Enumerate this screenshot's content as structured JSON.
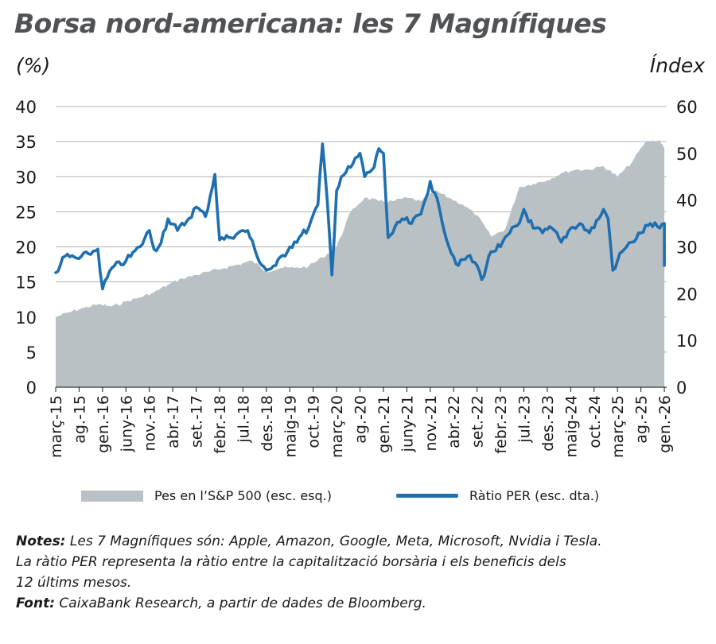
{
  "title": "Borsa nord-americana: les 7 Magnífiques",
  "left_unit": "(%)",
  "right_unit": "Índex",
  "legend": {
    "area_label": "Pes en l’S&P 500 (esc. esq.)",
    "line_label": "Ràtio PER (esc. dta.)"
  },
  "notes": {
    "notes_label": "Notes:",
    "notes_line1": "Les 7 Magnífiques són: Apple, Amazon, Google, Meta, Microsoft, Nvidia i Tesla.",
    "notes_line2": "La ràtio PER representa la ràtio entre la capitalització borsària i els beneficis dels",
    "notes_line3": "12 últims mesos.",
    "source_label": "Font:",
    "source_text": "CaixaBank Research, a partir de dades de Bloomberg."
  },
  "colors": {
    "area": "#b9c1c5",
    "line": "#1e6fb0",
    "grid": "#9a9a9a",
    "title": "#505256"
  },
  "chart_data": {
    "type": "line",
    "x_tick_labels": [
      "març-15",
      "ag.-15",
      "gen.-16",
      "juny-16",
      "nov.-16",
      "abr.-17",
      "set.-17",
      "febr.-18",
      "jul.-18",
      "des.-18",
      "maig-19",
      "oct.-19",
      "març-20",
      "ag.-20",
      "gen.-21",
      "juny-21",
      "nov.-21",
      "abr.-22",
      "set.-22",
      "febr.-23",
      "jul.-23",
      "des.-23",
      "maig-24",
      "oct.-24",
      "març-25",
      "ag.-25",
      "gen.-26"
    ],
    "y_left": {
      "min": 0,
      "max": 40,
      "ticks": [
        0,
        5,
        10,
        15,
        20,
        25,
        30,
        35,
        40
      ]
    },
    "y_right": {
      "min": 0,
      "max": 60,
      "ticks": [
        0,
        10,
        20,
        30,
        40,
        50,
        60
      ]
    },
    "grid": true,
    "legend_position": "bottom",
    "series": [
      {
        "name": "Pes en l’S&P 500 (esc. esq.)",
        "type": "area",
        "axis": "left",
        "x": [
          "2015-03",
          "2015-06",
          "2015-09",
          "2015-12",
          "2016-03",
          "2016-06",
          "2016-09",
          "2016-12",
          "2017-03",
          "2017-06",
          "2017-09",
          "2017-12",
          "2018-03",
          "2018-06",
          "2018-09",
          "2018-12",
          "2019-03",
          "2019-06",
          "2019-09",
          "2019-12",
          "2020-03",
          "2020-06",
          "2020-09",
          "2020-12",
          "2021-03",
          "2021-06",
          "2021-09",
          "2021-12",
          "2022-03",
          "2022-06",
          "2022-09",
          "2022-12",
          "2023-03",
          "2023-06",
          "2023-09",
          "2023-12",
          "2024-03",
          "2024-06",
          "2024-09",
          "2024-12",
          "2025-03",
          "2025-06",
          "2025-09",
          "2025-12",
          "2026-01"
        ],
        "values": [
          10,
          10.7,
          11.3,
          11.8,
          11.5,
          12.2,
          12.8,
          13.5,
          14.6,
          15.5,
          16,
          16.5,
          17,
          17.5,
          18,
          16.5,
          17,
          17,
          17.2,
          18.5,
          20,
          25,
          27,
          26.5,
          26.5,
          27,
          26.5,
          28,
          27,
          26,
          24.5,
          21.5,
          22.5,
          28.5,
          29,
          29.5,
          30.5,
          31,
          31,
          31.5,
          30,
          32,
          35,
          35.2,
          34
        ]
      },
      {
        "name": "Ràtio PER (esc. dta.)",
        "type": "line",
        "axis": "right",
        "x": [
          "2015-03",
          "2015-05",
          "2015-08",
          "2015-10",
          "2015-12",
          "2016-01",
          "2016-03",
          "2016-06",
          "2016-09",
          "2016-11",
          "2016-12",
          "2017-01",
          "2017-03",
          "2017-05",
          "2017-07",
          "2017-09",
          "2017-11",
          "2018-01",
          "2018-02",
          "2018-04",
          "2018-06",
          "2018-08",
          "2018-10",
          "2018-12",
          "2019-02",
          "2019-05",
          "2019-07",
          "2019-09",
          "2019-11",
          "2019-12",
          "2020-01",
          "2020-02",
          "2020-03",
          "2020-04",
          "2020-06",
          "2020-08",
          "2020-09",
          "2020-11",
          "2020-12",
          "2021-01",
          "2021-02",
          "2021-03",
          "2021-05",
          "2021-07",
          "2021-09",
          "2021-11",
          "2022-01",
          "2022-03",
          "2022-05",
          "2022-07",
          "2022-09",
          "2022-10",
          "2022-12",
          "2023-02",
          "2023-04",
          "2023-06",
          "2023-07",
          "2023-09",
          "2023-11",
          "2024-01",
          "2024-03",
          "2024-05",
          "2024-07",
          "2024-09",
          "2024-11",
          "2024-12",
          "2025-01",
          "2025-02",
          "2025-03",
          "2025-04",
          "2025-06",
          "2025-08",
          "2025-10",
          "2025-12",
          "2026-01",
          "2026-01"
        ],
        "values": [
          24.5,
          28,
          27.5,
          28.5,
          29.5,
          21,
          25.5,
          27,
          30,
          33.5,
          29.5,
          30,
          36,
          33.5,
          35.5,
          38.5,
          36.5,
          45.5,
          31.5,
          32,
          33,
          33.5,
          28,
          25,
          26,
          30,
          32,
          34,
          39,
          52,
          40,
          24,
          42,
          45,
          47,
          50,
          45,
          47,
          51,
          50,
          32,
          33,
          36,
          35,
          37,
          44,
          38,
          30,
          26,
          28,
          26,
          23,
          29,
          30,
          33,
          35,
          38,
          34,
          33,
          34,
          31,
          34,
          35,
          33,
          36,
          38,
          36,
          25,
          27,
          29,
          31,
          33,
          35,
          34,
          35,
          26
        ]
      }
    ]
  }
}
